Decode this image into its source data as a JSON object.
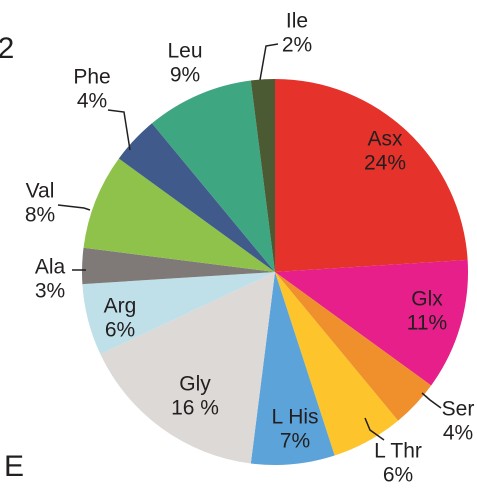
{
  "chart_data": {
    "type": "pie",
    "annotations": [
      "2",
      "E"
    ],
    "categories": [
      "Asx",
      "Glx",
      "Ser",
      "L Thr",
      "L His",
      "Gly",
      "Arg",
      "Ala",
      "Val",
      "Phe",
      "Leu",
      "Ile"
    ],
    "values": [
      24,
      11,
      4,
      6,
      7,
      16,
      6,
      3,
      8,
      4,
      9,
      2
    ],
    "value_labels": [
      "24%",
      "11%",
      "4%",
      "6%",
      "7%",
      "16 %",
      "6%",
      "3%",
      "8%",
      "4%",
      "9%",
      "2%"
    ],
    "colors": [
      "#e5322b",
      "#e61f8a",
      "#f0902c",
      "#fdc52b",
      "#5ca3d9",
      "#dcd9d6",
      "#bfe0e9",
      "#7f7977",
      "#8fc24b",
      "#3f5a8b",
      "#3ea680",
      "#4b5a32"
    ]
  }
}
